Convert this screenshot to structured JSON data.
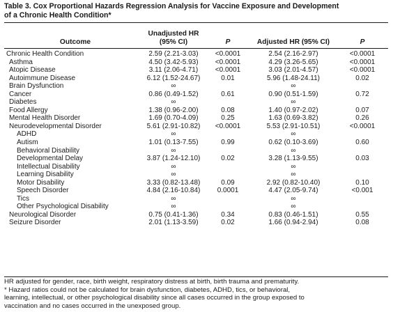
{
  "title": {
    "line1": "Table 3. Cox Proportional Hazards Regression Analysis for Vaccine Exposure and Development",
    "line2": "of a Chronic Health Condition*"
  },
  "headers": {
    "outcome": "Outcome",
    "unadjusted_hr_line1": "Unadjusted HR",
    "unadjusted_hr_line2": "(95% CI)",
    "p1": "P",
    "adjusted_hr": "Adjusted HR (95% CI)",
    "p2": "P"
  },
  "rows": [
    {
      "outcome": "Chronic Health Condition",
      "level": 0,
      "uhr": "2.59 (2.21-3.03)",
      "up": "<0.0001",
      "ahr": "2.54 (2.16-2.97)",
      "ap": "<0.0001"
    },
    {
      "outcome": "Asthma",
      "level": 1,
      "uhr": "4.50 (3.42-5.93)",
      "up": "<0.0001",
      "ahr": "4.29 (3.26-5.65)",
      "ap": "<0.0001"
    },
    {
      "outcome": "Atopic Disease",
      "level": 1,
      "uhr": "3.11 (2.06-4.71)",
      "up": "<0.0001",
      "ahr": "3.03 (2.01-4.57)",
      "ap": "<0.0001"
    },
    {
      "outcome": "Autoimmune Disease",
      "level": 1,
      "uhr": "6.12 (1.52-24.67)",
      "up": "0.01",
      "ahr": "5.96 (1.48-24.11)",
      "ap": "0.02"
    },
    {
      "outcome": "Brain Dysfunction",
      "level": 1,
      "uhr": "∞",
      "up": "",
      "ahr": "∞",
      "ap": ""
    },
    {
      "outcome": "Cancer",
      "level": 1,
      "uhr": "0.86 (0.49-1.52)",
      "up": "0.61",
      "ahr": "0.90 (0.51-1.59)",
      "ap": "0.72"
    },
    {
      "outcome": "Diabetes",
      "level": 1,
      "uhr": "∞",
      "up": "",
      "ahr": "∞",
      "ap": ""
    },
    {
      "outcome": "Food Allergy",
      "level": 1,
      "uhr": "1.38 (0.96-2.00)",
      "up": "0.08",
      "ahr": "1.40 (0.97-2.02)",
      "ap": "0.07"
    },
    {
      "outcome": "Mental Health Disorder",
      "level": 1,
      "uhr": "1.69 (0.70-4.09)",
      "up": "0.25",
      "ahr": "1.63 (0.69-3.82)",
      "ap": "0.26"
    },
    {
      "outcome": "Neurodevelopmental Disorder",
      "level": 1,
      "uhr": "5.61 (2.91-10.82)",
      "up": "<0.0001",
      "ahr": "5.53 (2.91-10.51)",
      "ap": "<0.0001"
    },
    {
      "outcome": "ADHD",
      "level": 2,
      "uhr": "∞",
      "up": "",
      "ahr": "∞",
      "ap": ""
    },
    {
      "outcome": "Autism",
      "level": 2,
      "uhr": "1.01 (0.13-7.55)",
      "up": "0.99",
      "ahr": "0.62 (0.10-3.69)",
      "ap": "0.60"
    },
    {
      "outcome": "Behavioral Disability",
      "level": 2,
      "uhr": "∞",
      "up": "",
      "ahr": "∞",
      "ap": ""
    },
    {
      "outcome": "Developmental Delay",
      "level": 2,
      "uhr": "3.87 (1.24-12.10)",
      "up": "0.02",
      "ahr": "3.28 (1.13-9.55)",
      "ap": "0.03"
    },
    {
      "outcome": "Intellectual Disability",
      "level": 2,
      "uhr": "∞",
      "up": "",
      "ahr": "∞",
      "ap": ""
    },
    {
      "outcome": "Learning Disability",
      "level": 2,
      "uhr": "∞",
      "up": "",
      "ahr": "∞",
      "ap": ""
    },
    {
      "outcome": "Motor Disability",
      "level": 2,
      "uhr": "3.33 (0.82-13.48)",
      "up": "0.09",
      "ahr": "2.92 (0.82-10.40)",
      "ap": "0.10"
    },
    {
      "outcome": "Speech Disorder",
      "level": 2,
      "uhr": "4.84 (2.16-10.84)",
      "up": "0.0001",
      "ahr": "4.47 (2.05-9.74)",
      "ap": "<0.001"
    },
    {
      "outcome": "Tics",
      "level": 2,
      "uhr": "∞",
      "up": "",
      "ahr": "∞",
      "ap": ""
    },
    {
      "outcome": "Other Psychological Disability",
      "level": 2,
      "uhr": "∞",
      "up": "",
      "ahr": "∞",
      "ap": ""
    },
    {
      "outcome": "Neurological Disorder",
      "level": 1,
      "uhr": "0.75 (0.41-1.36)",
      "up": "0.34",
      "ahr": "0.83 (0.46-1.51)",
      "ap": "0.55"
    },
    {
      "outcome": "Seizure Disorder",
      "level": 1,
      "uhr": "2.01 (1.13-3.59)",
      "up": "0.02",
      "ahr": "1.66 (0.94-2.94)",
      "ap": "0.08"
    }
  ],
  "footnotes": {
    "line1": "HR adjusted for gender, race, birth weight, respiratory distress at birth, birth trauma and prematurity.",
    "line2": "* Hazard ratios could not be calculated for brain dysfunction, diabetes, ADHD, tics, or behavioral,",
    "line3": "learning, intellectual, or other psychological disability since all cases occurred in the group exposed to",
    "line4": "vaccination and no cases occurred in the unexposed group."
  }
}
